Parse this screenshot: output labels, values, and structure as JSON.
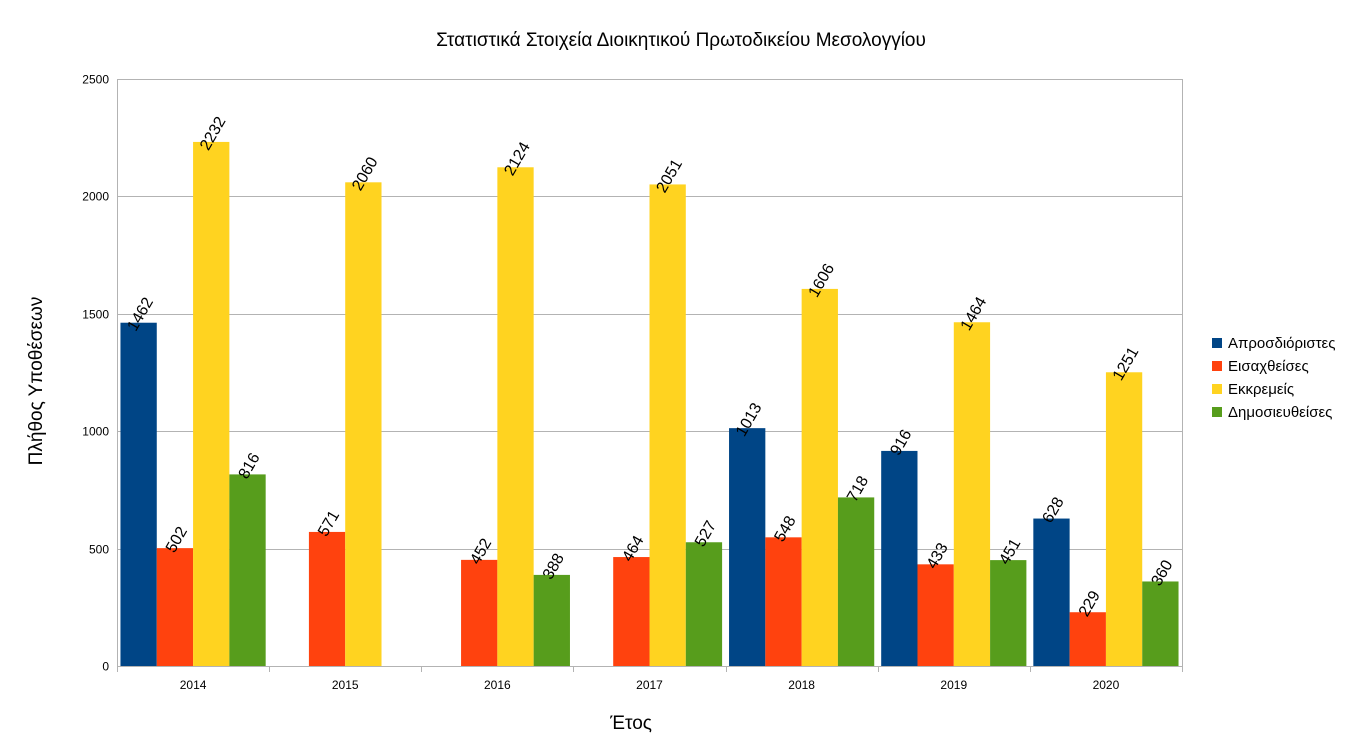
{
  "chart_data": {
    "type": "bar",
    "title": "Στατιστικά Στοιχεία Διοικητικού Πρωτοδικείου Μεσολογγίου",
    "xlabel": "Έτος",
    "ylabel": "Πλήθος Υποθέσεων",
    "categories": [
      "2014",
      "2015",
      "2016",
      "2017",
      "2018",
      "2019",
      "2020"
    ],
    "ylim": [
      0,
      2500
    ],
    "yticks": [
      0,
      500,
      1000,
      1500,
      2000,
      2500
    ],
    "grid": true,
    "legend_position": "right",
    "series": [
      {
        "name": "Απροσδιόριστες",
        "color": "#004586",
        "values": [
          1462,
          null,
          null,
          null,
          1013,
          916,
          628
        ]
      },
      {
        "name": "Εισαχθείσες",
        "color": "#ff420e",
        "values": [
          502,
          571,
          452,
          464,
          548,
          433,
          229
        ]
      },
      {
        "name": "Εκκρεμείς",
        "color": "#ffd320",
        "values": [
          2232,
          2060,
          2124,
          2051,
          1606,
          1464,
          1251
        ]
      },
      {
        "name": "Δημοσιευθείσες",
        "color": "#579d1c",
        "values": [
          816,
          null,
          388,
          527,
          718,
          451,
          360
        ]
      }
    ]
  }
}
